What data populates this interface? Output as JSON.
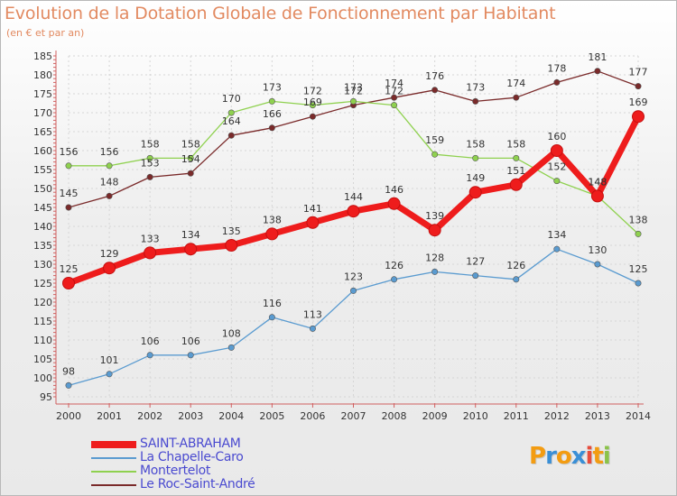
{
  "header": {
    "title": "Evolution de la Dotation Globale de Fonctionnement par Habitant",
    "subtitle": "(en € et par an)"
  },
  "logo": {
    "letters": [
      "P",
      "r",
      "o",
      "x",
      "i",
      "t",
      "i"
    ],
    "colors": [
      "#f39c12",
      "#3a8fd6",
      "#f39c12",
      "#3a8fd6",
      "#e74c3c",
      "#f39c12",
      "#8bc34a"
    ]
  },
  "chart_data": {
    "type": "line",
    "title": "Evolution de la Dotation Globale de Fonctionnement par Habitant",
    "subtitle": "(en € et par an)",
    "categories": [
      "2000",
      "2001",
      "2002",
      "2003",
      "2004",
      "2005",
      "2006",
      "2007",
      "2008",
      "2009",
      "2010",
      "2011",
      "2012",
      "2013",
      "2014"
    ],
    "ylim": [
      95,
      185
    ],
    "yticks": [
      95,
      100,
      105,
      110,
      115,
      120,
      125,
      130,
      135,
      140,
      145,
      150,
      155,
      160,
      165,
      170,
      175,
      180,
      185
    ],
    "grid": true,
    "series": [
      {
        "name": "SAINT-ABRAHAM",
        "color": "#ee1c1c",
        "values": [
          125,
          129,
          133,
          134,
          135,
          138,
          141,
          144,
          146,
          139,
          149,
          151,
          160,
          148,
          169
        ]
      },
      {
        "name": "La Chapelle-Caro",
        "color": "#5a9bd0",
        "values": [
          98,
          101,
          106,
          106,
          108,
          116,
          113,
          123,
          126,
          128,
          127,
          126,
          134,
          130,
          125
        ]
      },
      {
        "name": "Montertelot",
        "color": "#8fd14f",
        "values": [
          156,
          156,
          158,
          158,
          170,
          173,
          172,
          173,
          172,
          159,
          158,
          158,
          152,
          148,
          138
        ]
      },
      {
        "name": "Le Roc-Saint-André",
        "color": "#7a2a2a",
        "values": [
          145,
          148,
          153,
          154,
          164,
          166,
          169,
          172,
          174,
          176,
          173,
          174,
          178,
          181,
          177
        ]
      }
    ]
  }
}
